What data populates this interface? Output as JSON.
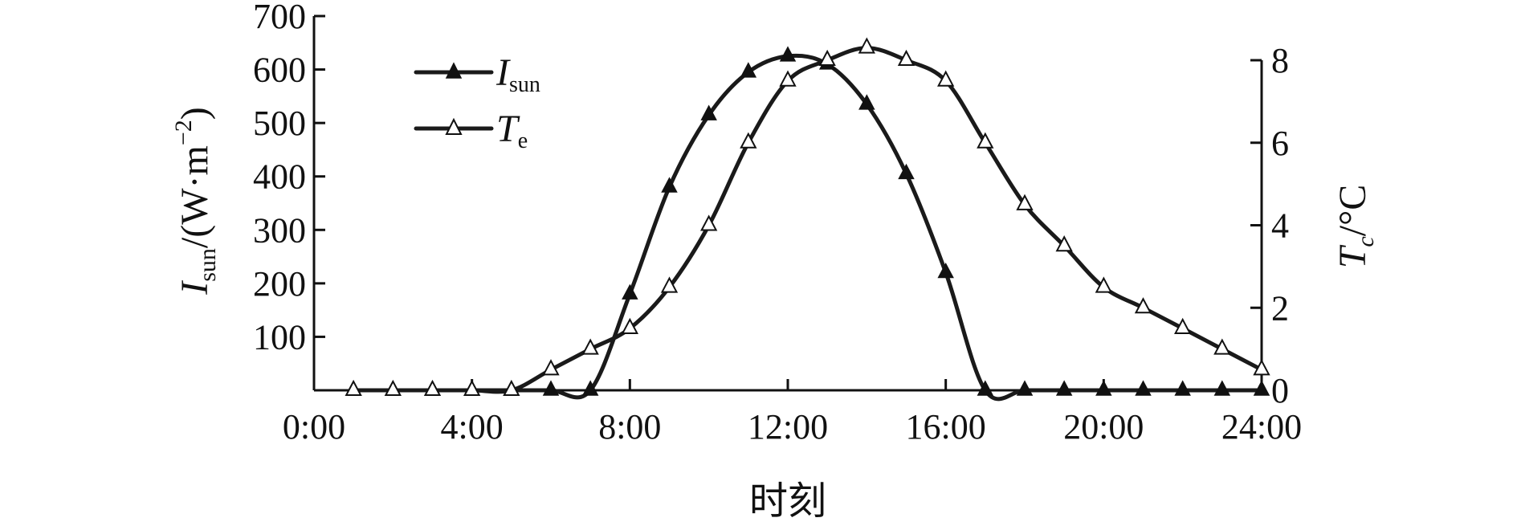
{
  "chart_data": {
    "type": "line",
    "xlabel": "时刻",
    "x_tick_labels": [
      "0:00",
      "4:00",
      "8:00",
      "12:00",
      "16:00",
      "20:00",
      "24:00"
    ],
    "x_tick_values": [
      0,
      4,
      8,
      12,
      16,
      20,
      24
    ],
    "xlim": [
      0,
      24
    ],
    "y_left": {
      "label_main": "I",
      "label_sub": "sun",
      "label_unit": "/(W·m",
      "label_sup": "−2",
      "label_close": ")",
      "ylim": [
        0,
        700
      ],
      "ticks": [
        100,
        200,
        300,
        400,
        500,
        600,
        700
      ]
    },
    "y_right": {
      "label_main": "T",
      "label_sub": "c",
      "label_unit": "/°C",
      "ylim": [
        0,
        8
      ],
      "ticks": [
        0,
        2,
        4,
        6,
        8
      ],
      "tick_labels": [
        "0",
        "2",
        "4",
        "6",
        "8"
      ]
    },
    "series": [
      {
        "name_main": "I",
        "name_sub": "sun",
        "axis": "left",
        "marker": "filled-triangle",
        "x": [
          1,
          2,
          3,
          4,
          5,
          6,
          7,
          8,
          9,
          10,
          11,
          12,
          13,
          14,
          15,
          16,
          17,
          18,
          19,
          20,
          21,
          22,
          23,
          24
        ],
        "y": [
          0,
          0,
          0,
          0,
          0,
          0,
          0,
          180,
          380,
          515,
          595,
          625,
          610,
          535,
          405,
          220,
          0,
          0,
          0,
          0,
          0,
          0,
          0,
          0
        ]
      },
      {
        "name_main": "T",
        "name_sub": "e",
        "axis": "right",
        "marker": "open-triangle",
        "x": [
          1,
          2,
          3,
          4,
          5,
          6,
          7,
          8,
          9,
          10,
          11,
          12,
          13,
          14,
          15,
          16,
          17,
          18,
          19,
          20,
          21,
          22,
          23,
          24
        ],
        "y": [
          0,
          0,
          0,
          0,
          0,
          0.5,
          1.0,
          1.5,
          2.5,
          4.0,
          6.0,
          7.5,
          8.0,
          8.3,
          8.0,
          7.5,
          6.0,
          4.5,
          3.5,
          2.5,
          2.0,
          1.5,
          1.0,
          0.5
        ]
      }
    ]
  }
}
